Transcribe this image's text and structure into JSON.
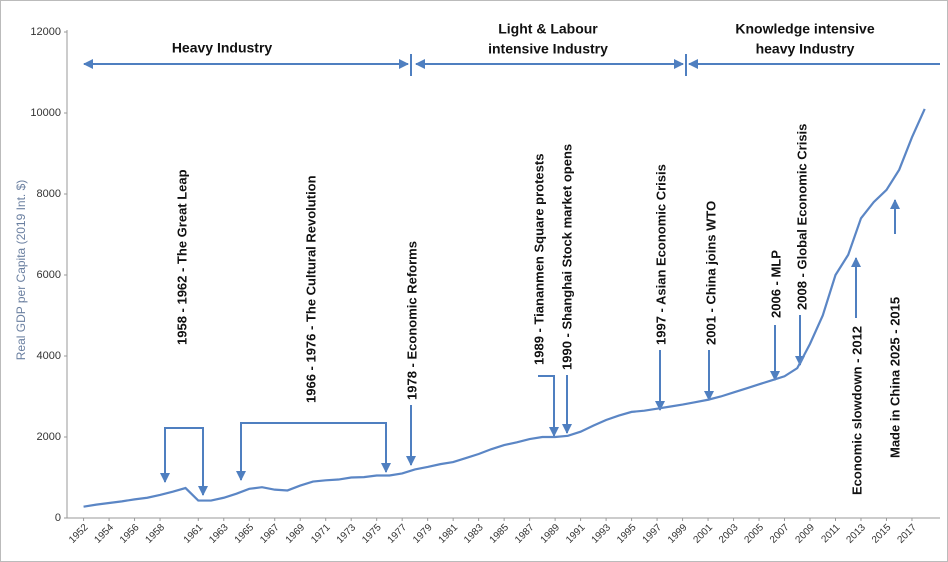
{
  "chart_data": {
    "type": "line",
    "y_label": "Real GDP per Capita (2019 Int. $)",
    "x": [
      1952,
      1953,
      1954,
      1955,
      1956,
      1957,
      1958,
      1959,
      1960,
      1961,
      1962,
      1963,
      1964,
      1965,
      1966,
      1967,
      1968,
      1969,
      1970,
      1971,
      1972,
      1973,
      1974,
      1975,
      1976,
      1977,
      1978,
      1979,
      1980,
      1981,
      1982,
      1983,
      1984,
      1985,
      1986,
      1987,
      1988,
      1989,
      1990,
      1991,
      1992,
      1993,
      1994,
      1995,
      1996,
      1997,
      1998,
      1999,
      2000,
      2001,
      2002,
      2003,
      2004,
      2005,
      2006,
      2007,
      2008,
      2009,
      2010,
      2011,
      2012,
      2013,
      2014,
      2015,
      2016,
      2017,
      2018
    ],
    "values": [
      280,
      330,
      370,
      410,
      460,
      500,
      570,
      650,
      740,
      430,
      430,
      500,
      600,
      720,
      760,
      700,
      680,
      800,
      900,
      930,
      950,
      1000,
      1010,
      1050,
      1050,
      1100,
      1200,
      1260,
      1330,
      1380,
      1480,
      1580,
      1700,
      1800,
      1870,
      1950,
      2000,
      2000,
      2030,
      2130,
      2280,
      2420,
      2530,
      2620,
      2650,
      2700,
      2750,
      2800,
      2860,
      2920,
      3000,
      3100,
      3200,
      3300,
      3400,
      3500,
      3700,
      4300,
      5000,
      6000,
      6500,
      7400,
      7800,
      8100,
      8600,
      9400,
      10100
    ],
    "color": "#5b86c5",
    "xlim": [
      1950.7,
      2019.2
    ],
    "xticks": [
      1952,
      1954,
      1956,
      1958,
      1961,
      1963,
      1965,
      1967,
      1969,
      1971,
      1973,
      1975,
      1977,
      1979,
      1981,
      1983,
      1985,
      1987,
      1989,
      1991,
      1993,
      1995,
      1997,
      1999,
      2001,
      2003,
      2005,
      2007,
      2009,
      2011,
      2013,
      2015,
      2017
    ],
    "ylim": [
      0,
      12000
    ],
    "yticks": [
      0,
      2000,
      4000,
      6000,
      8000,
      10000,
      12000
    ],
    "regions": [
      [
        "Heavy Industry"
      ],
      [
        "Light & Labour",
        "intensive Industry"
      ],
      [
        "Knowledge intensive",
        "heavy Industry"
      ]
    ],
    "annotations": [
      "1958 - 1962 - The Great Leap",
      "1966 - 1976 - The Cultural Revolution",
      "1978 - Economic  Reforms",
      "1989 - Tiananmen Square protests",
      "1990 - Shanghai Stock market opens",
      "1997 - Asian Economic Crisis",
      "2001 - China joins WTO",
      "2006 - MLP",
      "2008 - Global Economic Crisis",
      "Economic slowdown - 2012",
      "Made in China 2025 - 2015"
    ]
  }
}
